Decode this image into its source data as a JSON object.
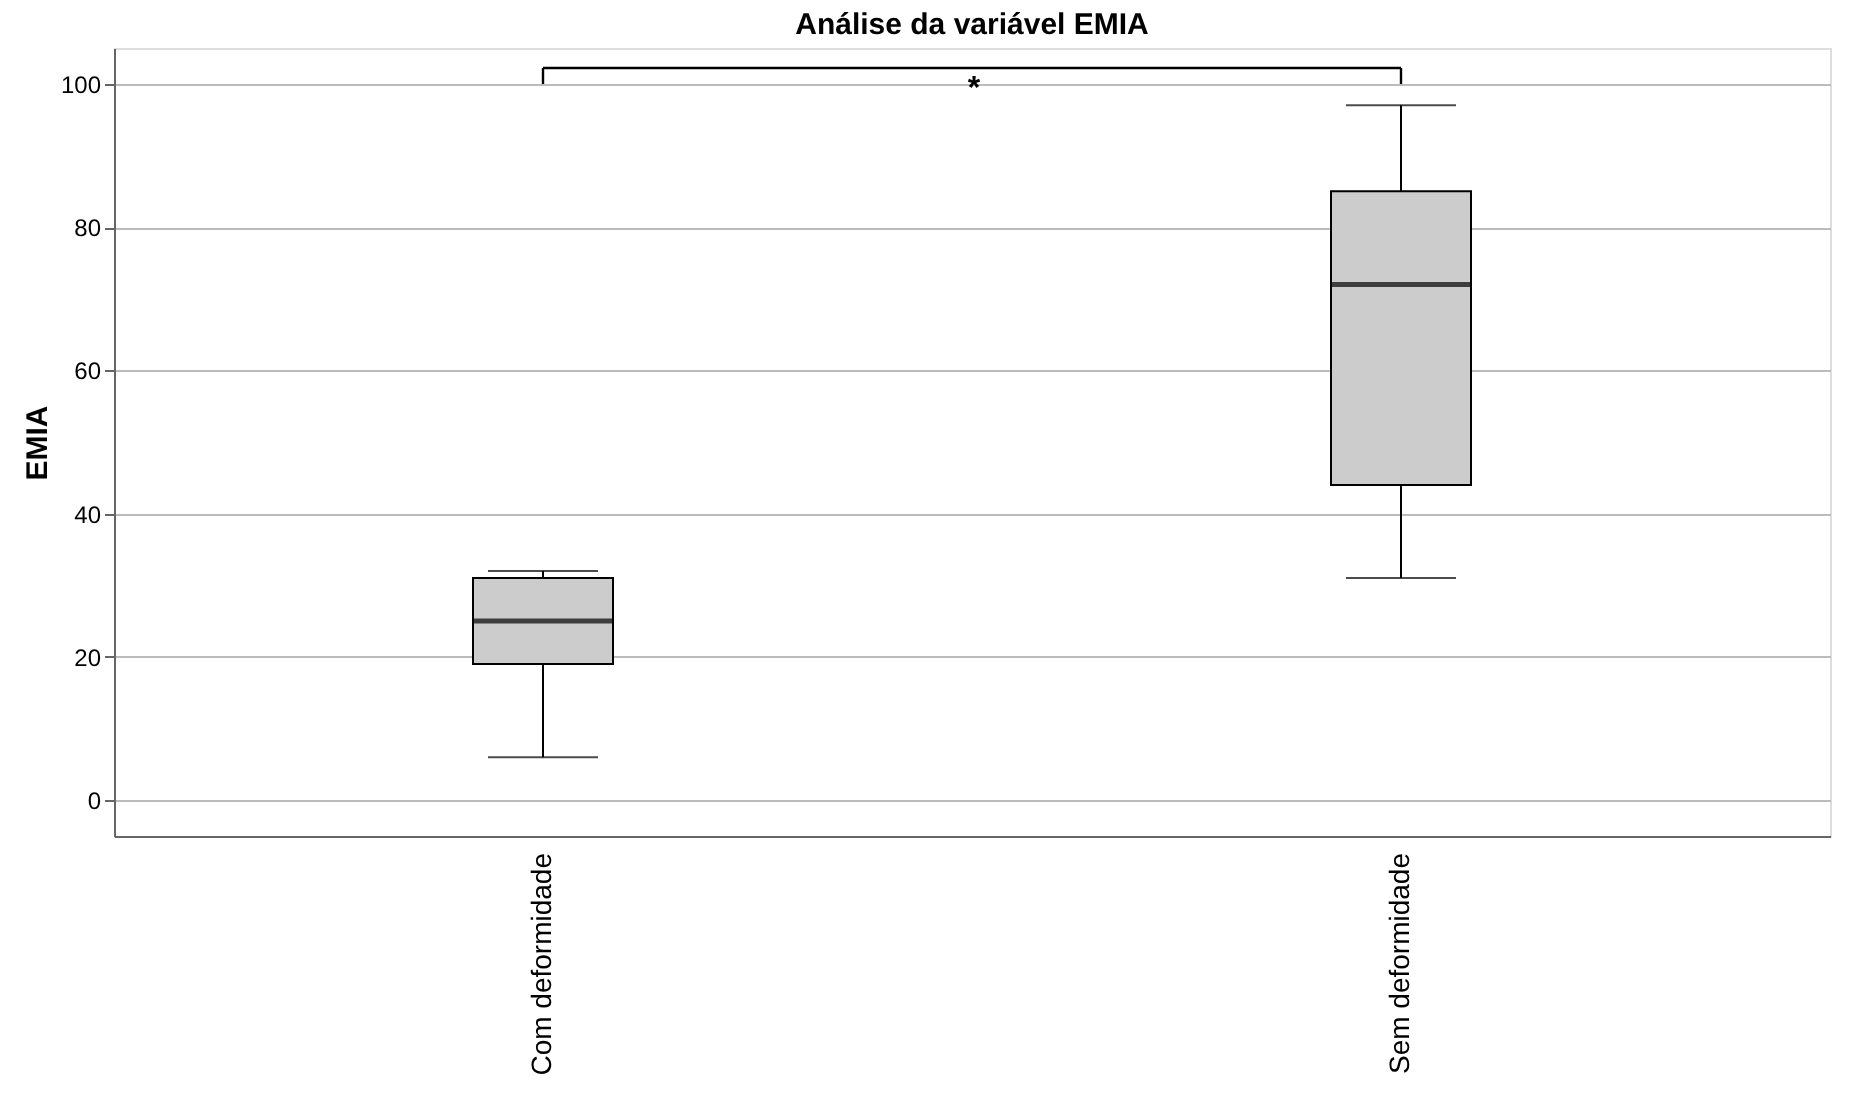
{
  "chart_data": {
    "type": "box",
    "title": "Análise da variável EMIA",
    "ylabel": "EMIA",
    "categories": [
      "Com deformidade",
      "Sem deformidade"
    ],
    "boxes": [
      {
        "low": 6,
        "q1": 19,
        "median": 25,
        "q3": 31,
        "high": 32
      },
      {
        "low": 31,
        "q1": 44,
        "median": 72,
        "q3": 85,
        "high": 97
      }
    ],
    "color": "#cccccc",
    "ylim": [
      -5,
      105
    ],
    "yticks": [
      0,
      20,
      40,
      60,
      80,
      100
    ],
    "grid": "y",
    "annotations": [
      "*"
    ]
  }
}
